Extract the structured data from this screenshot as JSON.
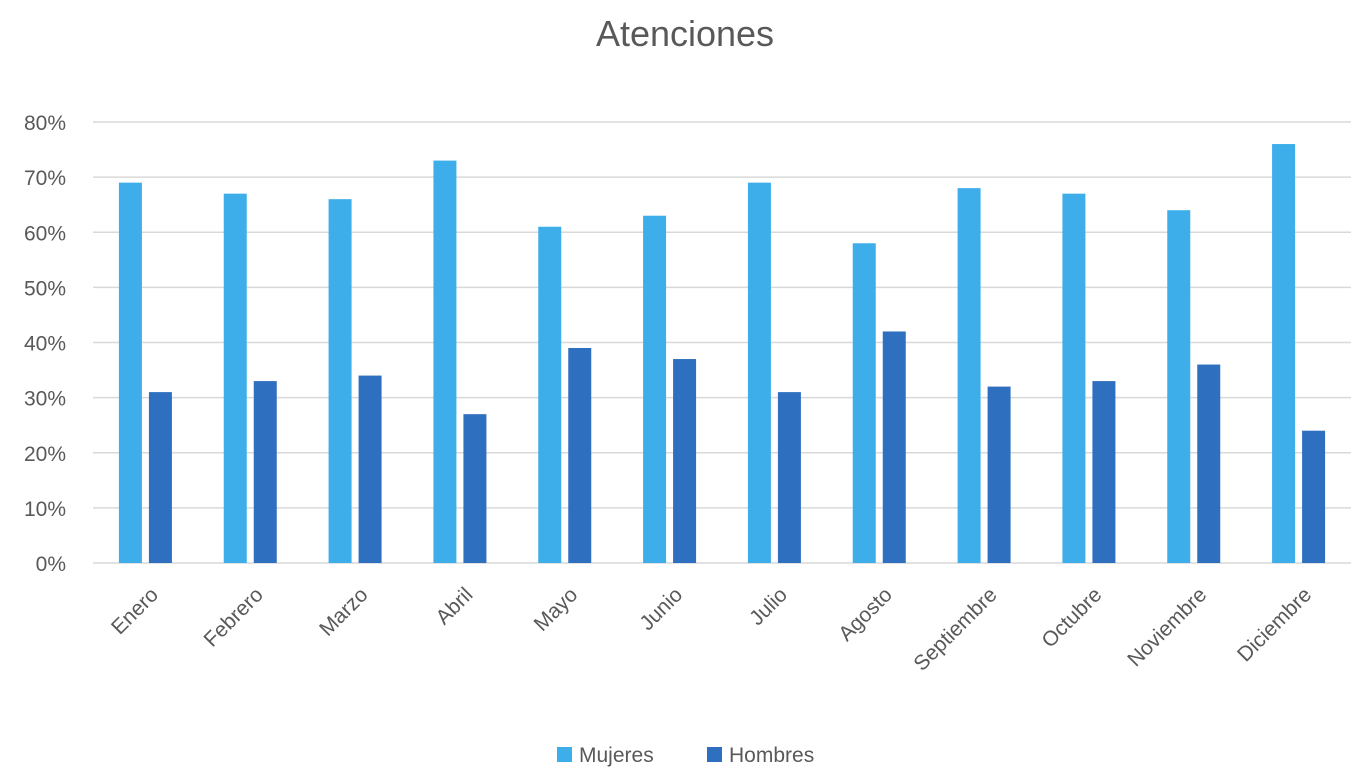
{
  "chart_data": {
    "type": "bar",
    "title": "Atenciones",
    "xlabel": "",
    "ylabel": "",
    "ylim": [
      0,
      80
    ],
    "yticks": [
      "0%",
      "10%",
      "20%",
      "30%",
      "40%",
      "50%",
      "60%",
      "70%",
      "80%"
    ],
    "categories": [
      "Enero",
      "Febrero",
      "Marzo",
      "Abril",
      "Mayo",
      "Junio",
      "Julio",
      "Agosto",
      "Septiembre",
      "Octubre",
      "Noviembre",
      "Diciembre"
    ],
    "series": [
      {
        "name": "Mujeres",
        "color": "#3daee9",
        "values": [
          69,
          67,
          66,
          73,
          61,
          63,
          69,
          58,
          68,
          67,
          64,
          76
        ]
      },
      {
        "name": "Hombres",
        "color": "#2e6fbf",
        "values": [
          31,
          33,
          34,
          27,
          39,
          37,
          31,
          42,
          32,
          33,
          36,
          24
        ]
      }
    ],
    "grid": true,
    "legend_position": "bottom-center"
  }
}
